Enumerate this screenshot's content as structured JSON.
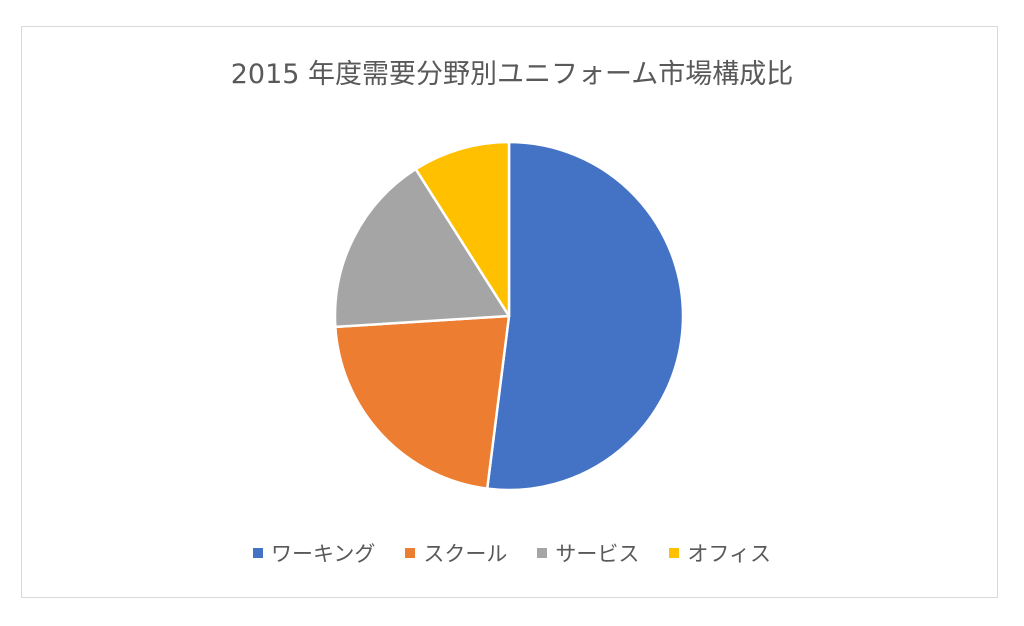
{
  "chart_data": {
    "type": "pie",
    "title": "2015 年度需要分野別ユニフォーム市場構成比",
    "categories": [
      "ワーキング",
      "スクール",
      "サービス",
      "オフィス"
    ],
    "values": [
      52,
      22,
      17,
      9
    ],
    "colors": [
      "#4472c4",
      "#ed7d31",
      "#a5a5a5",
      "#ffc000"
    ],
    "legend_position": "bottom"
  }
}
